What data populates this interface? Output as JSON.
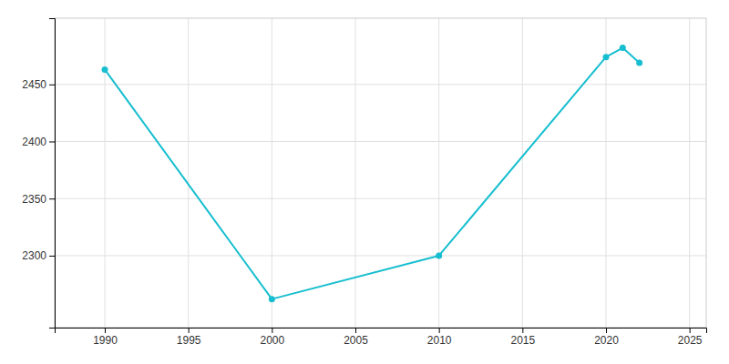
{
  "chart_data": {
    "type": "line",
    "x": [
      1990,
      2000,
      2010,
      2020,
      2021,
      2022
    ],
    "values": [
      2463,
      2262,
      2300,
      2474,
      2482,
      2469
    ],
    "color": "#17becf",
    "marker": "circle",
    "xlim": [
      1987,
      2026
    ],
    "ylim": [
      2237,
      2508
    ],
    "xticks": [
      1990,
      1995,
      2000,
      2005,
      2010,
      2015,
      2020,
      2025
    ],
    "yticks": [
      2300,
      2350,
      2400,
      2450
    ],
    "grid": true
  }
}
